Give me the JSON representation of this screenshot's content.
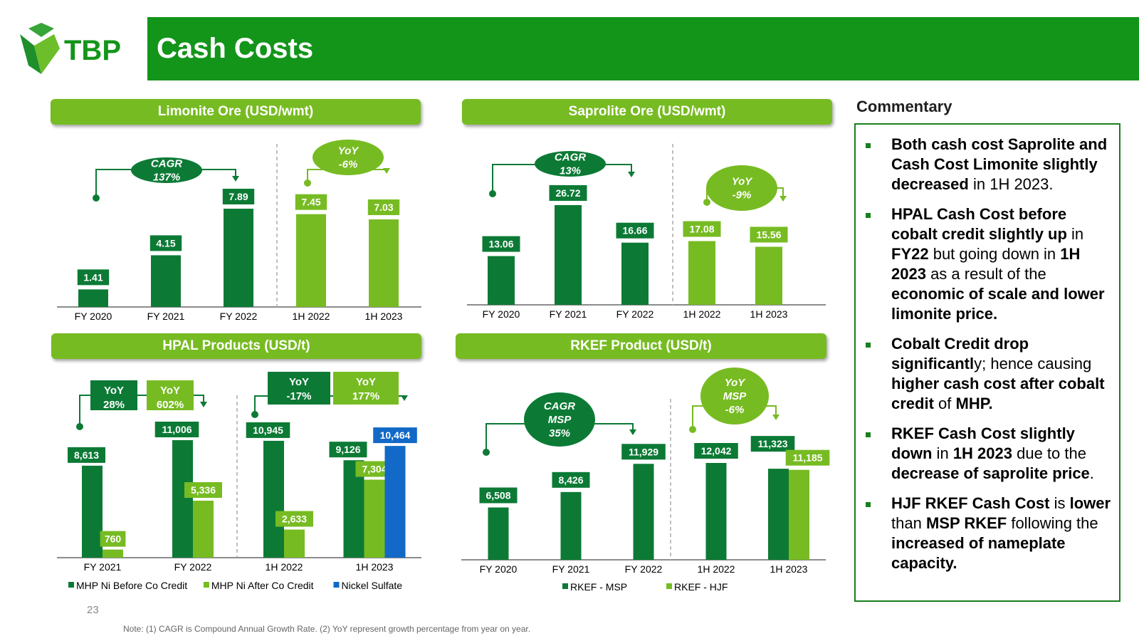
{
  "header": {
    "title": "Cash Costs",
    "logo_text": "TBP"
  },
  "colors": {
    "dark_green": "#0c7a35",
    "light_green": "#77bb22",
    "blue": "#1269c7",
    "header_green": "#13951a"
  },
  "chart_data": [
    {
      "id": "limonite",
      "type": "bar",
      "title": "Limonite Ore (USD/wmt)",
      "categories": [
        "FY 2020",
        "FY 2021",
        "FY 2022",
        "1H 2022",
        "1H 2023"
      ],
      "values": [
        1.41,
        4.15,
        7.89,
        7.45,
        7.03
      ],
      "value_labels": [
        "1.41",
        "4.15",
        "7.89",
        "7.45",
        "7.03"
      ],
      "bar_colors": [
        "dark",
        "dark",
        "dark",
        "light",
        "light"
      ],
      "annotations": [
        {
          "text_lines": [
            "CAGR",
            "137%"
          ]
        },
        {
          "text_lines": [
            "YoY",
            "-6%"
          ]
        }
      ]
    },
    {
      "id": "saprolite",
      "type": "bar",
      "title": "Saprolite Ore (USD/wmt)",
      "categories": [
        "FY 2020",
        "FY 2021",
        "FY 2022",
        "1H 2022",
        "1H 2023"
      ],
      "values": [
        13.06,
        26.72,
        16.66,
        17.08,
        15.56
      ],
      "value_labels": [
        "13.06",
        "26.72",
        "16.66",
        "17.08",
        "15.56"
      ],
      "bar_colors": [
        "dark",
        "dark",
        "dark",
        "light",
        "light"
      ],
      "annotations": [
        {
          "text_lines": [
            "CAGR",
            "13%"
          ]
        },
        {
          "text_lines": [
            "YoY",
            "-9%"
          ]
        }
      ]
    },
    {
      "id": "hpal",
      "type": "bar",
      "title": "HPAL Products (USD/t)",
      "categories": [
        "FY 2021",
        "FY 2022",
        "1H 2022",
        "1H 2023"
      ],
      "series": [
        {
          "name": "MHP Ni Before Co Credit",
          "color": "dark",
          "values": [
            8613,
            11006,
            10945,
            9126
          ],
          "labels": [
            "8,613",
            "11,006",
            "10,945",
            "9,126"
          ]
        },
        {
          "name": "MHP Ni After Co Credit",
          "color": "light",
          "values": [
            760,
            5336,
            2633,
            7304
          ],
          "labels": [
            "760",
            "5,336",
            "2,633",
            "7,304"
          ]
        },
        {
          "name": "Nickel Sulfate",
          "color": "blue",
          "values": [
            null,
            null,
            null,
            10464
          ],
          "labels": [
            "",
            "",
            "",
            "10,464"
          ]
        }
      ],
      "annotations": [
        {
          "text_lines": [
            "YoY",
            "28%"
          ]
        },
        {
          "text_lines": [
            "YoY",
            "602%"
          ]
        },
        {
          "text_lines": [
            "YoY",
            "-17%"
          ]
        },
        {
          "text_lines": [
            "YoY",
            "177%"
          ]
        }
      ]
    },
    {
      "id": "rkef",
      "type": "bar",
      "title": "RKEF Product (USD/t)",
      "categories": [
        "FY 2020",
        "FY 2021",
        "FY 2022",
        "1H 2022",
        "1H 2023"
      ],
      "series": [
        {
          "name": "RKEF - MSP",
          "color": "dark",
          "values": [
            6508,
            8426,
            11929,
            12042,
            11323
          ],
          "labels": [
            "6,508",
            "8,426",
            "11,929",
            "12,042",
            "11,323"
          ]
        },
        {
          "name": "RKEF - HJF",
          "color": "light",
          "values": [
            null,
            null,
            null,
            null,
            11185
          ],
          "labels": [
            "",
            "",
            "",
            "",
            "11,185"
          ]
        }
      ],
      "annotations": [
        {
          "text_lines": [
            "CAGR",
            "MSP",
            "35%"
          ]
        },
        {
          "text_lines": [
            "YoY",
            "MSP",
            "-6%"
          ]
        }
      ]
    }
  ],
  "commentary": {
    "title": "Commentary",
    "items": [
      [
        {
          "t": "Both cash cost Saprolite and Cash Cost Limonite slightly decreased",
          "b": true
        },
        {
          "t": " in 1H 2023.",
          "b": false
        }
      ],
      [
        {
          "t": "HPAL Cash Cost before cobalt credit slightly up",
          "b": true
        },
        {
          "t": " in ",
          "b": false
        },
        {
          "t": "FY22",
          "b": true
        },
        {
          "t": " but going down in ",
          "b": false
        },
        {
          "t": "1H 2023",
          "b": true
        },
        {
          "t": " as a result of the ",
          "b": false
        },
        {
          "t": "economic of scale and lower limonite price.",
          "b": true
        }
      ],
      [
        {
          "t": "Cobalt Credit drop significantl",
          "b": true
        },
        {
          "t": "y; hence causing ",
          "b": false
        },
        {
          "t": "higher cash cost after cobalt credit",
          "b": true
        },
        {
          "t": " of ",
          "b": false
        },
        {
          "t": "MHP.",
          "b": true
        }
      ],
      [
        {
          "t": "RKEF Cash Cost slightly down",
          "b": true
        },
        {
          "t": " in ",
          "b": false
        },
        {
          "t": "1H 2023",
          "b": true
        },
        {
          "t": " due to the ",
          "b": false
        },
        {
          "t": "decrease of saprolite price",
          "b": true
        },
        {
          "t": ".",
          "b": false
        }
      ],
      [
        {
          "t": "HJF RKEF Cash Cost",
          "b": true
        },
        {
          "t": " is ",
          "b": false
        },
        {
          "t": "lower",
          "b": true
        },
        {
          "t": " than ",
          "b": false
        },
        {
          "t": "MSP RKEF",
          "b": true
        },
        {
          "t": " following the ",
          "b": false
        },
        {
          "t": "increased of nameplate capacity.",
          "b": true
        }
      ]
    ]
  },
  "footer": {
    "page_number": "23",
    "note": "Note: (1) CAGR is Compound Annual Growth Rate. (2) YoY represent growth percentage from year on year."
  }
}
